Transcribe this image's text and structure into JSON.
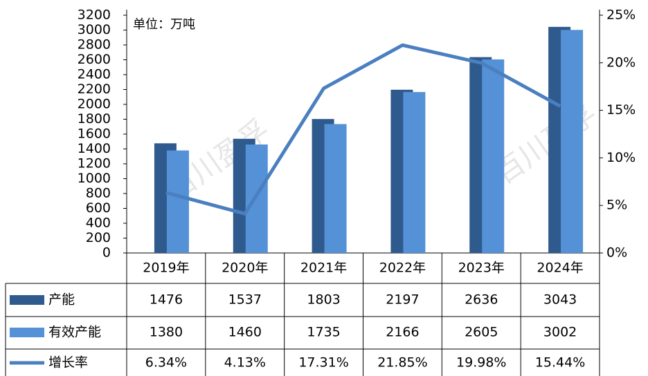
{
  "chart_data": {
    "type": "bar_line_table",
    "subtitle": "单位：万吨",
    "watermark": "百川盈孚",
    "categories": [
      "2019年",
      "2020年",
      "2021年",
      "2022年",
      "2023年",
      "2024年"
    ],
    "series": [
      {
        "name": "产能",
        "type": "bar",
        "color": "#2f5a8e",
        "values": [
          1476,
          1537,
          1803,
          2197,
          2636,
          3043
        ]
      },
      {
        "name": "有效产能",
        "type": "bar",
        "color": "#5591d6",
        "values": [
          1380,
          1460,
          1735,
          2166,
          2605,
          3002
        ]
      },
      {
        "name": "增长率",
        "type": "line",
        "axis": "y2",
        "color": "#4a7fc0",
        "values": [
          6.34,
          4.13,
          17.31,
          21.85,
          19.98,
          15.44
        ],
        "value_labels": [
          "6.34%",
          "4.13%",
          "17.31%",
          "21.85%",
          "19.98%",
          "15.44%"
        ]
      }
    ],
    "ylim": [
      0,
      3200
    ],
    "yticks": [
      0,
      200,
      400,
      600,
      800,
      1000,
      1200,
      1400,
      1600,
      1800,
      2000,
      2200,
      2400,
      2600,
      2800,
      3000,
      3200
    ],
    "y2lim": [
      0,
      25
    ],
    "y2ticks": [
      {
        "value": 0,
        "label": "0%"
      },
      {
        "value": 5,
        "label": "5%"
      },
      {
        "value": 10,
        "label": "10%"
      },
      {
        "value": 15,
        "label": "15%"
      },
      {
        "value": 20,
        "label": "20%"
      },
      {
        "value": 25,
        "label": "25%"
      }
    ]
  }
}
